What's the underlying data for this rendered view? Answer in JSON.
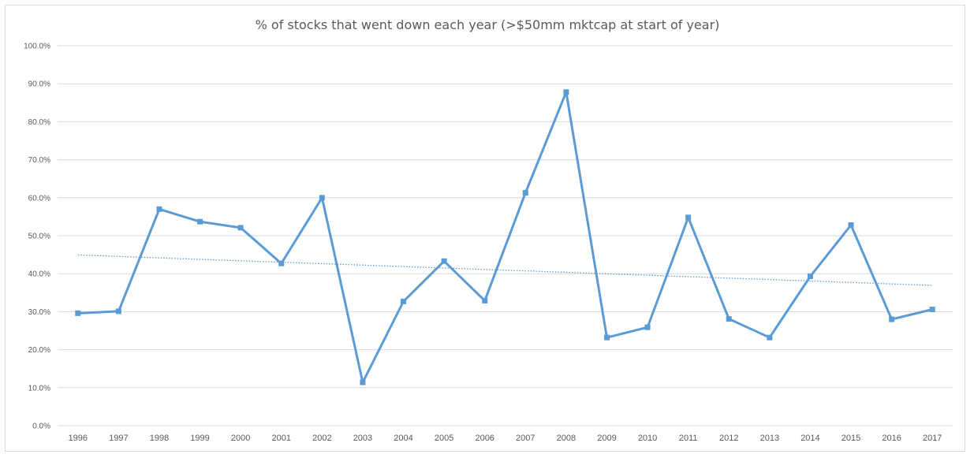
{
  "chart_data": {
    "type": "line",
    "title": "% of stocks that went down each year (>$50mm mktcap at start of year)",
    "xlabel": "",
    "ylabel": "",
    "categories": [
      "1996",
      "1997",
      "1998",
      "1999",
      "2000",
      "2001",
      "2002",
      "2003",
      "2004",
      "2005",
      "2006",
      "2007",
      "2008",
      "2009",
      "2010",
      "2011",
      "2012",
      "2013",
      "2014",
      "2015",
      "2016",
      "2017"
    ],
    "series": [
      {
        "values": [
          0.296,
          0.301,
          0.57,
          0.537,
          0.521,
          0.427,
          0.6,
          0.114,
          0.327,
          0.433,
          0.329,
          0.613,
          0.878,
          0.232,
          0.259,
          0.548,
          0.281,
          0.232,
          0.393,
          0.528,
          0.28,
          0.306
        ],
        "color": "#5b9bd5",
        "marker": "square"
      }
    ],
    "trendline": {
      "type": "linear",
      "style": "dotted",
      "color": "#5b9bd5"
    },
    "ylim": [
      0,
      1.0
    ],
    "yticks": [
      "0.0%",
      "10.0%",
      "20.0%",
      "30.0%",
      "40.0%",
      "50.0%",
      "60.0%",
      "70.0%",
      "80.0%",
      "90.0%",
      "100.0%"
    ],
    "grid": true,
    "gridColor": "#d9d9d9",
    "legend": "none"
  }
}
